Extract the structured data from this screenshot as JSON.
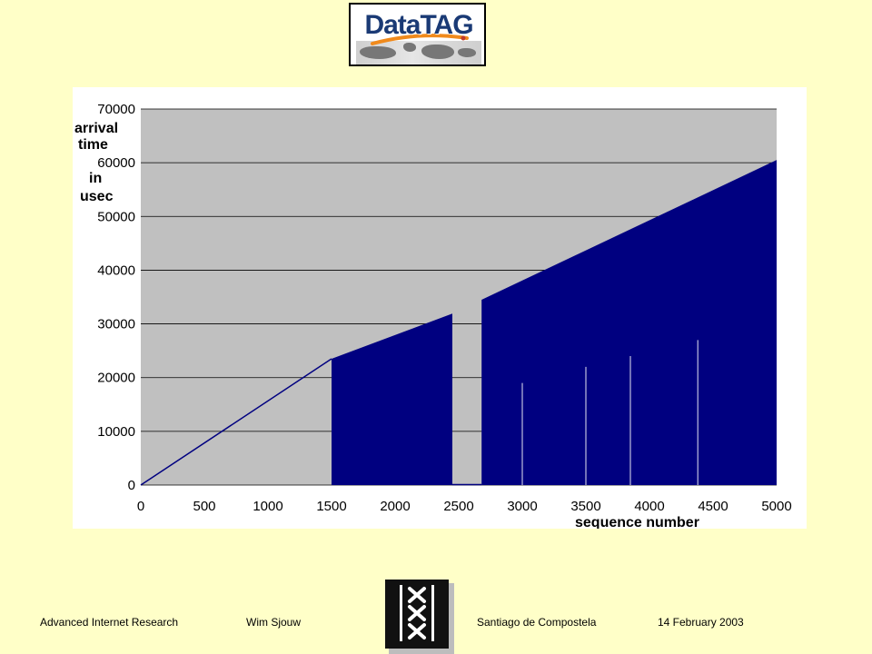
{
  "logo": {
    "text": "DataTAG"
  },
  "chart_data": {
    "type": "area",
    "xlabel": "sequence number",
    "ylabel_lines": [
      "arrival",
      "time",
      "in",
      "usec"
    ],
    "xlim": [
      0,
      5000
    ],
    "ylim": [
      0,
      70000
    ],
    "x_ticks": [
      0,
      500,
      1000,
      1500,
      2000,
      2500,
      3000,
      3500,
      4000,
      4500,
      5000
    ],
    "y_ticks": [
      0,
      10000,
      20000,
      30000,
      40000,
      50000,
      60000,
      70000
    ],
    "grid": "horizontal",
    "colors": {
      "plot_bg": "#C0C0C0",
      "series": "#000080",
      "grid": "#000000"
    },
    "series": [
      {
        "x": [
          0,
          500,
          1000,
          1500,
          2000,
          2450,
          2600,
          2700,
          3000,
          3500,
          4000,
          4500,
          5000
        ],
        "y": [
          0,
          7800,
          15600,
          23500,
          29000,
          34500,
          0,
          34500,
          38000,
          44000,
          49500,
          55000,
          60500
        ]
      }
    ],
    "gap_x": [
      2450,
      2680
    ],
    "low_spikes": [
      {
        "x": 3000,
        "y": 19000
      },
      {
        "x": 3500,
        "y": 22000
      },
      {
        "x": 3850,
        "y": 24000
      },
      {
        "x": 4380,
        "y": 27000
      }
    ]
  },
  "footer": {
    "org": "Advanced Internet Research",
    "author": "Wim Sjouw",
    "place": "Santiago de Compostela",
    "date": "14 February 2003"
  }
}
